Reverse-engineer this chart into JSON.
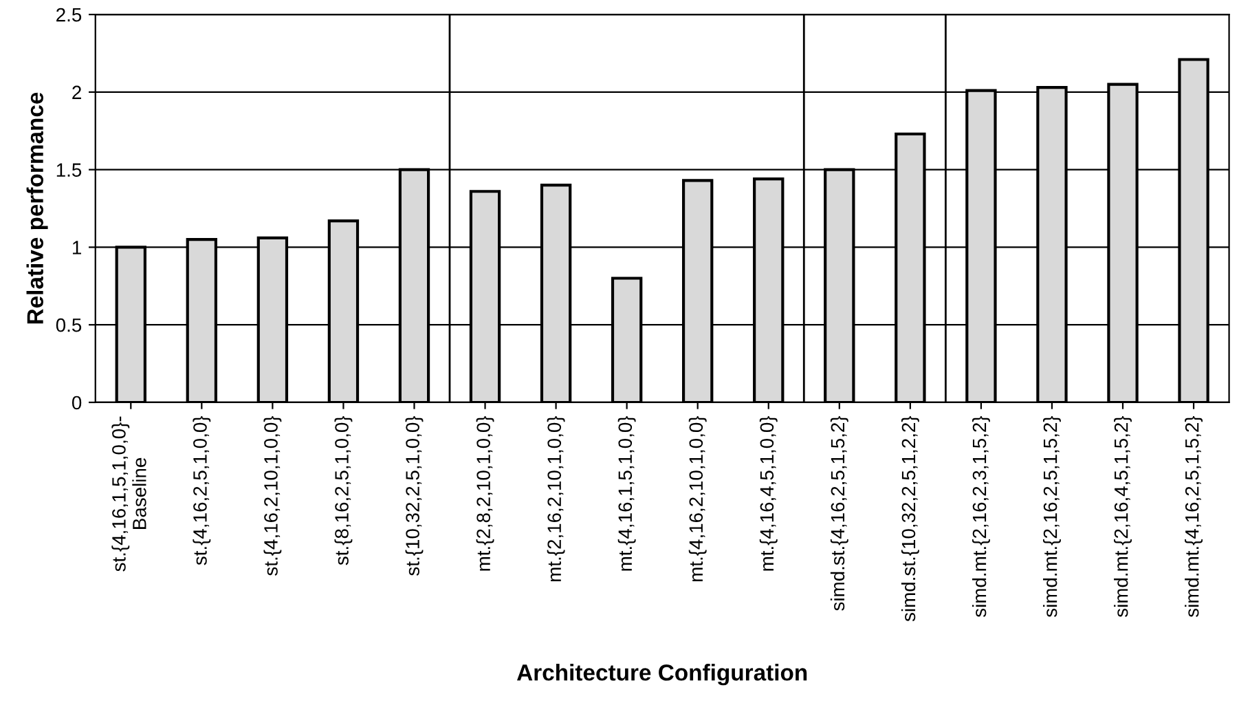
{
  "chart_data": {
    "type": "bar",
    "xlabel": "Architecture Configuration",
    "ylabel": "Relative performance",
    "categories": [
      "st.{4,16,1,5,1,0,0}-\nBaseline",
      "st.{4,16,2,5,1,0,0}",
      "st.{4,16,2,10,1,0,0}",
      "st.{8,16,2,5,1,0,0}",
      "st.{10,32,2,5,1,0,0}",
      "mt.{2,8,2,10,1,0,0}",
      "mt.{2,16,2,10,1,0,0}",
      "mt.{4,16,1,5,1,0,0}",
      "mt.{4,16,2,10,1,0,0}",
      "mt.{4,16,4,5,1,0,0}",
      "simd.st.{4,16,2,5,1,5,2}",
      "simd.st.{10,32,2,5,1,2,2}",
      "simd.mt.{2,16,2,3,1,5,2}",
      "simd.mt.{2,16,2,5,1,5,2}",
      "simd.mt.{2,16,4,5,1,5,2}",
      "simd.mt.{4,16,2,5,1,5,2}"
    ],
    "values": [
      1.0,
      1.05,
      1.06,
      1.17,
      1.5,
      1.36,
      1.4,
      0.8,
      1.43,
      1.44,
      1.5,
      1.73,
      2.01,
      2.03,
      2.05,
      2.21
    ],
    "color": "#d9d9d9",
    "ylim": [
      0,
      2.5
    ],
    "yticks": [
      0,
      0.5,
      1,
      1.5,
      2,
      2.5
    ],
    "grid": "y"
  }
}
